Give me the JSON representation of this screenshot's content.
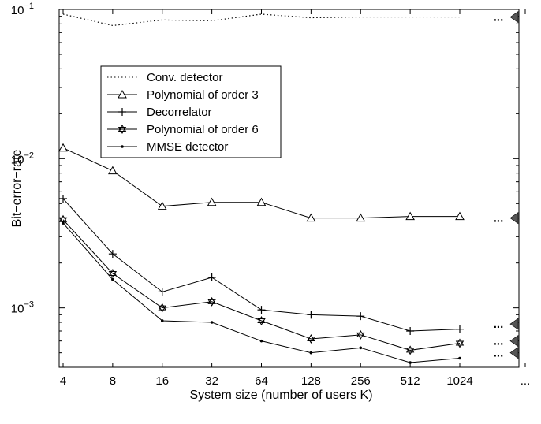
{
  "chart_data": {
    "type": "line",
    "title": "",
    "xlabel": "System size (number of users  K)",
    "ylabel": "Bit−error−rate",
    "x_scale": "log2",
    "y_scale": "log10",
    "x_tick_labels": [
      "4",
      "8",
      "16",
      "32",
      "64",
      "128",
      "256",
      "512",
      "1024",
      "..."
    ],
    "x": [
      4,
      8,
      16,
      32,
      64,
      128,
      256,
      512,
      1024
    ],
    "ylim": [
      0.0004,
      0.1
    ],
    "y_ticks": [
      {
        "value": 0.1,
        "base": "10",
        "exp": "−1"
      },
      {
        "value": 0.01,
        "base": "10",
        "exp": "−2"
      },
      {
        "value": 0.001,
        "base": "10",
        "exp": "−3"
      }
    ],
    "grid": false,
    "legend_position": "upper-left",
    "limit_ellipsis": "...",
    "series": [
      {
        "name": "Conv. detector",
        "style": "dotted",
        "marker": "none",
        "values": [
          0.093,
          0.078,
          0.085,
          0.084,
          0.093,
          0.088,
          0.089,
          0.089,
          0.089
        ],
        "limit": 0.089
      },
      {
        "name": "Polynomial of order 3",
        "style": "solid",
        "marker": "triangle",
        "values": [
          0.0118,
          0.0083,
          0.0048,
          0.0051,
          0.0051,
          0.004,
          0.004,
          0.0041,
          0.0041
        ],
        "limit": 0.004
      },
      {
        "name": "Decorrelator",
        "style": "solid",
        "marker": "plus",
        "values": [
          0.0054,
          0.0023,
          0.00128,
          0.0016,
          0.00097,
          0.0009,
          0.00088,
          0.0007,
          0.00072
        ],
        "limit": 0.00078
      },
      {
        "name": "Polynomial of order 6",
        "style": "solid",
        "marker": "hexagram",
        "values": [
          0.0039,
          0.0017,
          0.001,
          0.0011,
          0.00082,
          0.00062,
          0.00066,
          0.00052,
          0.00058
        ],
        "limit": 0.0006
      },
      {
        "name": "MMSE detector",
        "style": "solid",
        "marker": "dot",
        "values": [
          0.0037,
          0.00155,
          0.00082,
          0.0008,
          0.0006,
          0.0005,
          0.00054,
          0.00043,
          0.00046
        ],
        "limit": 0.0005
      }
    ]
  }
}
